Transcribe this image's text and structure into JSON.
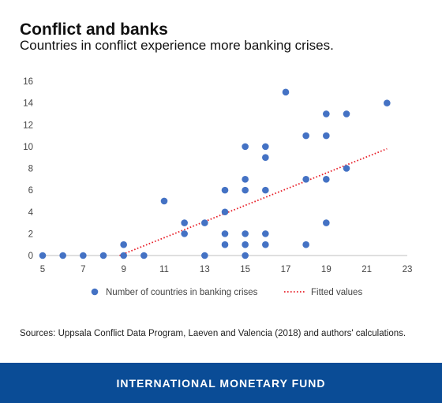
{
  "header": {
    "title": "Conflict and banks",
    "subtitle": "Countries in conflict experience more banking crises."
  },
  "chart_data": {
    "type": "scatter",
    "title": "Conflict and banks",
    "subtitle": "Countries in conflict experience more banking crises.",
    "xlabel": "",
    "ylabel": "",
    "xlim": [
      5,
      23
    ],
    "ylim": [
      0,
      16
    ],
    "x_ticks": [
      5,
      7,
      9,
      11,
      13,
      15,
      17,
      19,
      21,
      23
    ],
    "y_ticks": [
      0,
      2,
      4,
      6,
      8,
      10,
      12,
      14,
      16
    ],
    "grid": false,
    "legend_position": "bottom",
    "series": [
      {
        "name": "Number of countries in banking crises",
        "kind": "scatter",
        "color": "#4472c4",
        "points": [
          [
            5,
            0
          ],
          [
            6,
            0
          ],
          [
            7,
            0
          ],
          [
            8,
            0
          ],
          [
            9,
            0
          ],
          [
            9,
            1
          ],
          [
            10,
            0
          ],
          [
            11,
            5
          ],
          [
            12,
            3
          ],
          [
            12,
            2
          ],
          [
            13,
            3
          ],
          [
            13,
            0
          ],
          [
            14,
            6
          ],
          [
            14,
            4
          ],
          [
            14,
            2
          ],
          [
            14,
            1
          ],
          [
            15,
            10
          ],
          [
            15,
            7
          ],
          [
            15,
            6
          ],
          [
            15,
            2
          ],
          [
            15,
            1
          ],
          [
            15,
            0
          ],
          [
            16,
            10
          ],
          [
            16,
            9
          ],
          [
            16,
            6
          ],
          [
            16,
            2
          ],
          [
            16,
            1
          ],
          [
            17,
            15
          ],
          [
            18,
            11
          ],
          [
            18,
            7
          ],
          [
            18,
            1
          ],
          [
            19,
            13
          ],
          [
            19,
            11
          ],
          [
            19,
            7
          ],
          [
            19,
            3
          ],
          [
            20,
            13
          ],
          [
            20,
            8
          ],
          [
            22,
            14
          ]
        ]
      },
      {
        "name": "Fitted values",
        "kind": "line",
        "style": "dotted",
        "color": "#e8202a",
        "points": [
          [
            8.8,
            0
          ],
          [
            22,
            9.8
          ]
        ]
      }
    ]
  },
  "source": {
    "text": "Sources: Uppsala Conflict Data Program, Laeven and Valencia (2018) and authors' calculations."
  },
  "footer": {
    "text": "INTERNATIONAL MONETARY FUND",
    "color": "#0a4c96"
  }
}
